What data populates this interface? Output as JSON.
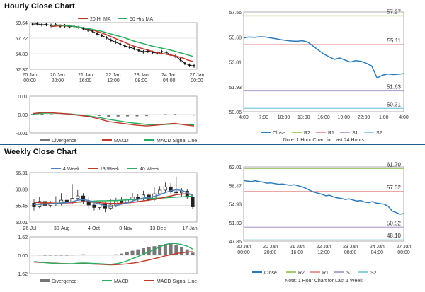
{
  "hourly": {
    "title": "Hourly Close Chart",
    "left_price": {
      "type": "candlestick",
      "legend": [
        "20 Hr MA",
        "50 Hrs MA"
      ],
      "ylabels": [
        "59.64",
        "57.22",
        "54.80",
        "52.37"
      ],
      "xlabels": [
        [
          "20 Jan",
          "00:00"
        ],
        [
          "20 Jan",
          "20:00"
        ],
        [
          "21 Jan",
          "16:00"
        ],
        [
          "22 Jan",
          "12:00"
        ],
        [
          "23 Jan",
          "08:00"
        ],
        [
          "24 Jan",
          "04:00"
        ],
        [
          "27 Jan",
          "00:00"
        ]
      ],
      "ylim": [
        52.37,
        59.64
      ],
      "close": [
        59.4,
        59.45,
        59.3,
        59.35,
        59.2,
        59.3,
        59.1,
        59.15,
        59.0,
        59.05,
        58.9,
        58.7,
        58.5,
        58.3,
        57.9,
        57.6,
        57.3,
        56.9,
        56.6,
        56.3,
        56.0,
        55.8,
        55.6,
        55.3,
        55.1,
        55.2,
        55.0,
        54.9,
        55.1,
        55.0,
        54.6,
        54.4,
        53.9,
        53.3,
        53.0,
        52.9
      ],
      "ma20": [
        59.0,
        59.1,
        59.15,
        59.15,
        59.1,
        59.05,
        58.95,
        58.85,
        58.7,
        58.5,
        58.3,
        58.05,
        57.8,
        57.5,
        57.2,
        56.9,
        56.6,
        56.3,
        56.0,
        55.8,
        55.6,
        55.4,
        55.2,
        55.0,
        54.85,
        54.75,
        54.6,
        54.5,
        54.3,
        54.1,
        53.8,
        53.6
      ],
      "ma50": [
        59.2,
        59.25,
        59.25,
        59.2,
        59.15,
        59.05,
        58.95,
        58.85,
        58.75,
        58.6,
        58.45,
        58.3,
        58.1,
        57.9,
        57.7,
        57.5,
        57.3,
        57.05,
        56.8,
        56.6,
        56.4,
        56.2,
        56.0,
        55.85,
        55.7,
        55.55,
        55.4,
        55.2,
        55.0,
        54.8,
        54.6,
        54.4
      ]
    },
    "left_macd": {
      "type": "line",
      "ylabels": [
        "0.01",
        "0.00",
        "-0.01"
      ],
      "ylim": [
        -0.01,
        0.01
      ],
      "legend": [
        "Divergence",
        "MACD",
        "MACD Signal Line"
      ],
      "macd": [
        0.0005,
        0.0011,
        0.001,
        0.0006,
        0.0002,
        -0.0005,
        -0.0012,
        -0.0024,
        -0.0038,
        -0.0045,
        -0.0052,
        -0.0058,
        -0.0062,
        -0.0058,
        -0.0052,
        -0.0048,
        -0.0056,
        -0.0062
      ],
      "signal": [
        0.0002,
        0.0007,
        0.0008,
        0.0006,
        0.0003,
        -0.0002,
        -0.0008,
        -0.0016,
        -0.0026,
        -0.0034,
        -0.0042,
        -0.0048,
        -0.0054,
        -0.0056,
        -0.0054,
        -0.0051,
        -0.0053,
        -0.0057
      ],
      "divergence": [
        0.0003,
        0.0004,
        0.0002,
        0.0,
        -0.0001,
        -0.0003,
        -0.0004,
        -0.0008,
        -0.0012,
        -0.0011,
        -0.001,
        -0.001,
        -0.0008,
        -0.0002,
        0.0002,
        0.0003,
        -0.0003,
        -0.0005
      ]
    },
    "right": {
      "type": "line",
      "ylim": [
        50.06,
        57.56
      ],
      "ylabels": [
        "57.56",
        "55.68",
        "53.81",
        "51.93",
        "50.06"
      ],
      "xlabels": [
        "4:00",
        "7:00",
        "10:00",
        "13:00",
        "16:00",
        "19:00",
        "22:00",
        "1:00",
        "4:00"
      ],
      "levels": [
        {
          "name": "R2",
          "value": 57.27,
          "label": "57.27",
          "color": "#a5cc6b"
        },
        {
          "name": "R1",
          "value": 55.11,
          "label": "55.11",
          "color": "#e89a9a"
        },
        {
          "name": "S1",
          "value": 51.63,
          "label": "51.63",
          "color": "#b9a4d3"
        },
        {
          "name": "S2",
          "value": 50.31,
          "label": "50.31",
          "color": "#8dcde0"
        }
      ],
      "close": [
        55.6,
        55.68,
        55.65,
        55.7,
        55.68,
        55.62,
        55.55,
        55.48,
        55.42,
        55.38,
        55.36,
        55.4,
        55.3,
        55.0,
        54.7,
        54.4,
        54.2,
        54.0,
        54.1,
        53.95,
        53.8,
        53.9,
        53.85,
        53.7,
        53.5,
        52.6,
        52.8,
        52.9,
        52.85,
        52.88,
        52.92
      ],
      "legend": [
        "Close",
        "R2",
        "R1",
        "S1",
        "S2"
      ],
      "note": "Note: 1 Hour Chart for Last 24 Hours"
    }
  },
  "weekly": {
    "title": "Weekly Close Chart",
    "left_price": {
      "type": "candlestick",
      "legend": [
        "4 Week",
        "13 Week",
        "40 Week"
      ],
      "ylabels": [
        "66.31",
        "60.88",
        "55.45",
        "50.01"
      ],
      "xlabels": [
        "26-Jul",
        "30-Aug",
        "4-Oct",
        "8-Nov",
        "13-Dec",
        "17-Jan"
      ],
      "ylim": [
        50.01,
        66.31
      ],
      "candles": [
        {
          "o": 56.2,
          "c": 55.0,
          "h": 57.5,
          "l": 53.8
        },
        {
          "o": 55.0,
          "c": 56.8,
          "h": 58.2,
          "l": 54.6
        },
        {
          "o": 56.8,
          "c": 55.5,
          "h": 58.8,
          "l": 53.5
        },
        {
          "o": 55.5,
          "c": 56.3,
          "h": 57.0,
          "l": 54.8
        },
        {
          "o": 56.3,
          "c": 56.0,
          "h": 58.5,
          "l": 55.2
        },
        {
          "o": 56.0,
          "c": 57.2,
          "h": 59.5,
          "l": 55.5
        },
        {
          "o": 57.2,
          "c": 56.6,
          "h": 59.0,
          "l": 55.8
        },
        {
          "o": 56.6,
          "c": 57.8,
          "h": 62.5,
          "l": 56.0
        },
        {
          "o": 57.8,
          "c": 58.6,
          "h": 60.5,
          "l": 57.0
        },
        {
          "o": 58.6,
          "c": 57.0,
          "h": 59.5,
          "l": 56.0
        },
        {
          "o": 57.0,
          "c": 55.6,
          "h": 58.2,
          "l": 54.5
        },
        {
          "o": 55.6,
          "c": 54.8,
          "h": 57.0,
          "l": 53.8
        },
        {
          "o": 54.8,
          "c": 55.9,
          "h": 56.8,
          "l": 54.0
        },
        {
          "o": 55.9,
          "c": 54.6,
          "h": 56.5,
          "l": 53.2
        },
        {
          "o": 54.6,
          "c": 55.6,
          "h": 57.5,
          "l": 54.0
        },
        {
          "o": 55.6,
          "c": 57.0,
          "h": 58.0,
          "l": 54.9
        },
        {
          "o": 57.0,
          "c": 56.4,
          "h": 58.3,
          "l": 55.7
        },
        {
          "o": 56.4,
          "c": 57.6,
          "h": 58.9,
          "l": 55.9
        },
        {
          "o": 57.6,
          "c": 58.2,
          "h": 59.6,
          "l": 57.0
        },
        {
          "o": 58.2,
          "c": 57.8,
          "h": 59.3,
          "l": 56.8
        },
        {
          "o": 57.8,
          "c": 58.9,
          "h": 60.3,
          "l": 57.2
        },
        {
          "o": 58.9,
          "c": 57.4,
          "h": 59.6,
          "l": 56.6
        },
        {
          "o": 57.4,
          "c": 59.3,
          "h": 61.5,
          "l": 57.0
        },
        {
          "o": 59.3,
          "c": 60.5,
          "h": 61.8,
          "l": 58.8
        },
        {
          "o": 60.5,
          "c": 61.6,
          "h": 63.0,
          "l": 60.0
        },
        {
          "o": 61.6,
          "c": 60.0,
          "h": 62.8,
          "l": 59.3
        },
        {
          "o": 60.0,
          "c": 59.6,
          "h": 65.0,
          "l": 58.9
        },
        {
          "o": 59.6,
          "c": 60.2,
          "h": 61.2,
          "l": 58.5
        },
        {
          "o": 60.2,
          "c": 58.2,
          "h": 60.8,
          "l": 57.6
        },
        {
          "o": 58.2,
          "c": 55.0,
          "h": 58.6,
          "l": 54.3
        }
      ],
      "ma4": [
        55.9,
        55.8,
        55.9,
        56.0,
        56.1,
        56.3,
        56.4,
        56.7,
        57.2,
        57.4,
        57.1,
        56.5,
        55.9,
        55.4,
        55.1,
        55.4,
        55.9,
        56.3,
        56.9,
        57.5,
        57.9,
        58.1,
        58.4,
        59.0,
        59.7,
        60.3,
        60.6,
        60.4,
        59.7,
        58.7
      ],
      "ma13": [
        56.5,
        56.4,
        56.3,
        56.3,
        56.2,
        56.2,
        56.3,
        56.4,
        56.6,
        56.7,
        56.7,
        56.5,
        56.4,
        56.2,
        56.1,
        56.1,
        56.2,
        56.3,
        56.5,
        56.7,
        57.0,
        57.2,
        57.5,
        57.8,
        58.2,
        58.6,
        59.0,
        59.2,
        59.3,
        59.0
      ],
      "ma40": [
        55.8,
        55.9,
        56.0,
        56.1,
        56.2,
        56.3,
        56.4,
        56.5,
        56.6,
        56.7,
        56.8,
        56.9,
        57.0,
        57.0,
        57.1,
        57.1,
        57.2,
        57.3,
        57.4,
        57.5,
        57.6,
        57.7,
        57.8,
        57.9,
        58.0,
        58.1,
        58.2,
        58.3,
        58.4,
        58.5
      ]
    },
    "left_macd": {
      "type": "line",
      "ylabels": [
        "1.62",
        "0.00",
        "-1.62"
      ],
      "ylim": [
        -1.62,
        1.62
      ],
      "legend": [
        "Divergence",
        "MACD",
        "MACD Signal Line"
      ],
      "macd": [
        -0.55,
        -0.6,
        -0.65,
        -0.7,
        -0.72,
        -0.75,
        -0.75,
        -0.74,
        -0.7,
        -0.68,
        -0.7,
        -0.72,
        -0.75,
        -0.78,
        -0.8,
        -0.75,
        -0.65,
        -0.5,
        -0.3,
        -0.1,
        0.1,
        0.3,
        0.5,
        0.75,
        0.95,
        1.05,
        1.02,
        0.95,
        0.8,
        0.55
      ],
      "signal": [
        -0.6,
        -0.62,
        -0.65,
        -0.68,
        -0.7,
        -0.73,
        -0.75,
        -0.76,
        -0.76,
        -0.76,
        -0.76,
        -0.78,
        -0.8,
        -0.82,
        -0.84,
        -0.83,
        -0.8,
        -0.76,
        -0.7,
        -0.62,
        -0.52,
        -0.42,
        -0.3,
        -0.18,
        -0.05,
        0.05,
        0.15,
        0.22,
        0.28,
        0.32
      ],
      "divergence": [
        0.05,
        0.02,
        0.0,
        -0.02,
        -0.02,
        -0.02,
        0.0,
        0.02,
        0.06,
        0.08,
        0.06,
        0.06,
        0.05,
        0.04,
        0.04,
        0.08,
        0.15,
        0.26,
        0.4,
        0.52,
        0.62,
        0.72,
        0.8,
        0.93,
        1.0,
        1.0,
        0.87,
        0.73,
        0.52,
        0.23
      ]
    },
    "right": {
      "type": "line",
      "ylim": [
        47.86,
        62.01
      ],
      "ylabels": [
        "62.01",
        "58.47",
        "54.93",
        "51.39",
        "47.86"
      ],
      "xlabels": [
        [
          "20 Jan",
          "00:00"
        ],
        [
          "20 Jan",
          "20:00"
        ],
        [
          "21 Jan",
          "16:00"
        ],
        [
          "22 Jan",
          "12:00"
        ],
        [
          "23 Jan",
          "08:00"
        ],
        [
          "24 Jan",
          "04:00"
        ],
        [
          "27 Jan",
          "00:00"
        ]
      ],
      "levels": [
        {
          "name": "R2",
          "value": 61.7,
          "label": "61.70",
          "color": "#a5cc6b"
        },
        {
          "name": "R1",
          "value": 57.32,
          "label": "57.32",
          "color": "#e89a9a"
        },
        {
          "name": "S1",
          "value": 50.52,
          "label": "50.52",
          "color": "#b9a4d3"
        },
        {
          "name": "S2",
          "value": 48.1,
          "label": "48.10",
          "color": "#8dcde0"
        }
      ],
      "close": [
        59.4,
        59.3,
        59.2,
        59.35,
        59.2,
        59.1,
        58.9,
        58.95,
        58.8,
        58.7,
        58.75,
        58.6,
        58.5,
        58.6,
        58.4,
        58.2,
        57.9,
        57.5,
        57.2,
        57.0,
        56.8,
        56.5,
        56.6,
        56.3,
        56.1,
        56.0,
        55.8,
        55.9,
        55.7,
        55.5,
        55.6,
        55.3,
        55.2,
        55.4,
        55.1,
        55.0,
        54.9,
        54.5,
        53.6,
        53.3,
        53.0,
        53.1
      ],
      "legend": [
        "Close",
        "R2",
        "R1",
        "S1",
        "S2"
      ],
      "note": "Note: 1 Hour Chart for Last 1 Week"
    }
  },
  "colors": {
    "ma20": "#c0392b",
    "ma50": "#27ae60",
    "close_line": "#2b7bb9",
    "macd": "#c0392b",
    "signal": "#27ae60",
    "divergence": "#777777",
    "ma4": "#4a7fc1",
    "ma13": "#c0392b",
    "ma40": "#27ae60",
    "grid": "#d5d5d5",
    "frame": "#999999"
  }
}
